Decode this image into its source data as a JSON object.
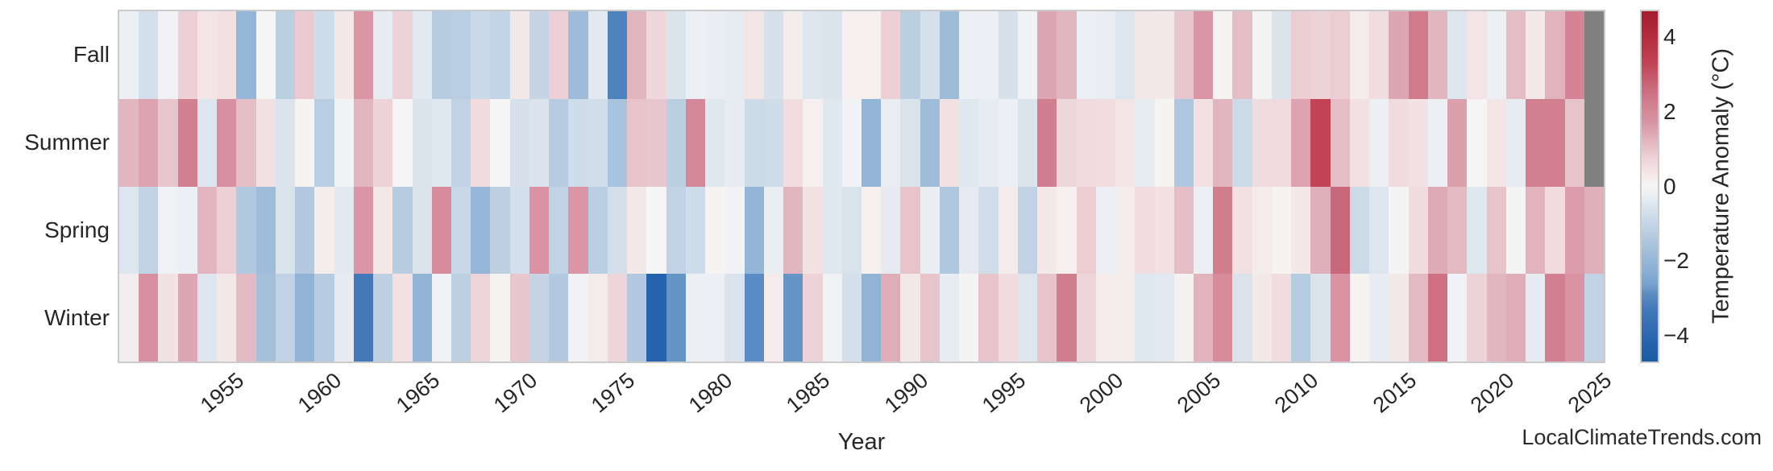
{
  "watermark": "LocalClimateTrends.com",
  "chart_data": {
    "type": "heatmap",
    "title": "",
    "xlabel": "Year",
    "ylabel": "",
    "rows": [
      "Fall",
      "Summer",
      "Spring",
      "Winter"
    ],
    "years": [
      1950,
      1951,
      1952,
      1953,
      1954,
      1955,
      1956,
      1957,
      1958,
      1959,
      1960,
      1961,
      1962,
      1963,
      1964,
      1965,
      1966,
      1967,
      1968,
      1969,
      1970,
      1971,
      1972,
      1973,
      1974,
      1975,
      1976,
      1977,
      1978,
      1979,
      1980,
      1981,
      1982,
      1983,
      1984,
      1985,
      1986,
      1987,
      1988,
      1989,
      1990,
      1991,
      1992,
      1993,
      1994,
      1995,
      1996,
      1997,
      1998,
      1999,
      2000,
      2001,
      2002,
      2003,
      2004,
      2005,
      2006,
      2007,
      2008,
      2009,
      2010,
      2011,
      2012,
      2013,
      2014,
      2015,
      2016,
      2017,
      2018,
      2019,
      2020,
      2021,
      2022,
      2023,
      2024,
      2025
    ],
    "x_tick_years": [
      1955,
      1960,
      1965,
      1970,
      1975,
      1980,
      1985,
      1990,
      1995,
      2000,
      2005,
      2010,
      2015,
      2020,
      2025
    ],
    "series": [
      {
        "name": "Fall",
        "values": [
          -0.2,
          -0.7,
          -0.1,
          0.8,
          0.4,
          0.5,
          -2.0,
          0.0,
          -1.2,
          0.9,
          -0.8,
          0.35,
          1.7,
          -0.3,
          0.75,
          -0.4,
          -1.3,
          -1.25,
          -0.9,
          -1.05,
          0.3,
          -1.0,
          0.8,
          -1.85,
          -0.4,
          -3.1,
          1.2,
          0.65,
          -0.55,
          -0.2,
          -0.25,
          -0.3,
          0.4,
          -0.65,
          0.2,
          -0.5,
          -0.55,
          0.15,
          0.15,
          0.8,
          -1.2,
          -0.65,
          -1.85,
          -0.2,
          -0.2,
          -0.65,
          -0.1,
          1.45,
          1.2,
          -0.2,
          -0.25,
          -0.5,
          0.35,
          0.3,
          0.95,
          1.7,
          0.05,
          1.1,
          -0.05,
          -0.55,
          0.85,
          0.75,
          0.85,
          0.25,
          0.55,
          1.45,
          2.3,
          1.2,
          -0.5,
          0.4,
          -0.2,
          1.1,
          0.3,
          1.25,
          2.1,
          null
        ]
      },
      {
        "name": "Summer",
        "values": [
          1.2,
          1.5,
          0.95,
          2.2,
          -0.5,
          1.8,
          1.1,
          0.5,
          -0.55,
          0.05,
          -1.25,
          -0.1,
          1.2,
          0.75,
          0.0,
          -0.55,
          -0.45,
          -1.1,
          0.6,
          0.0,
          -0.65,
          -0.55,
          -1.3,
          -0.8,
          -0.75,
          -1.6,
          1.0,
          0.95,
          -1.2,
          2.0,
          -0.45,
          -0.3,
          -0.85,
          -0.8,
          0.55,
          0.15,
          -0.45,
          -0.1,
          -2.05,
          -0.25,
          -0.6,
          -1.8,
          0.45,
          -0.45,
          -0.3,
          -0.2,
          -0.55,
          2.25,
          0.65,
          0.6,
          0.55,
          0.4,
          -0.3,
          0.05,
          -1.45,
          0.5,
          1.2,
          -0.85,
          0.6,
          0.6,
          1.5,
          3.3,
          1.1,
          0.5,
          -0.2,
          0.6,
          0.45,
          -0.2,
          1.55,
          0.0,
          0.4,
          -0.3,
          2.2,
          2.2,
          1.0,
          null
        ]
      },
      {
        "name": "Spring",
        "values": [
          -0.5,
          -1.1,
          -0.15,
          -0.2,
          1.2,
          0.8,
          -1.4,
          -1.8,
          -0.6,
          -1.4,
          0.2,
          -0.4,
          1.7,
          0.35,
          -1.3,
          -0.55,
          1.9,
          -0.95,
          -2.0,
          -1.15,
          -0.7,
          1.75,
          -1.1,
          1.7,
          -1.25,
          -0.7,
          0.3,
          0.0,
          -1.1,
          -0.8,
          0.05,
          -0.1,
          -2.05,
          -0.25,
          1.2,
          0.45,
          -0.45,
          -0.6,
          0.15,
          -0.35,
          1.0,
          -0.25,
          -1.45,
          -0.35,
          -0.75,
          0.25,
          -1.1,
          0.3,
          0.15,
          0.85,
          -0.2,
          0.2,
          0.55,
          0.5,
          1.1,
          -0.2,
          2.25,
          0.5,
          0.25,
          0.05,
          0.3,
          1.3,
          2.7,
          -0.85,
          -0.5,
          -0.05,
          0.6,
          1.4,
          1.15,
          -0.45,
          1.0,
          -0.05,
          1.25,
          0.6,
          1.6,
          1.3
        ]
      },
      {
        "name": "Winter",
        "values": [
          0.2,
          1.8,
          0.45,
          1.45,
          -0.5,
          0.35,
          1.15,
          -1.7,
          -1.1,
          -2.1,
          -1.3,
          -0.35,
          -3.3,
          -1.15,
          0.5,
          -2.1,
          -0.15,
          -1.15,
          0.7,
          0.05,
          0.95,
          -1.0,
          -1.4,
          -0.1,
          0.25,
          0.7,
          -1.4,
          -4.2,
          -2.8,
          -0.2,
          -0.2,
          -0.55,
          -2.9,
          0.25,
          -2.8,
          0.75,
          -0.1,
          -0.7,
          -2.1,
          1.35,
          0.35,
          1.0,
          -0.3,
          -0.05,
          1.0,
          0.6,
          -0.5,
          1.0,
          2.25,
          0.7,
          0.25,
          0.25,
          -0.45,
          -0.4,
          0.1,
          1.25,
          1.9,
          -0.6,
          0.3,
          0.55,
          -1.35,
          -0.55,
          1.75,
          0.05,
          -0.3,
          0.3,
          1.15,
          2.5,
          -0.1,
          0.75,
          1.2,
          1.35,
          -0.35,
          2.2,
          1.75,
          -1.1
        ]
      }
    ],
    "colorbar": {
      "label": "Temperature Anomaly (°C)",
      "ticks": [
        4,
        2,
        0,
        -2,
        -4
      ],
      "vmin": -4.7,
      "vmax": 4.7
    },
    "nan_color": "#808080",
    "colormap_stops": [
      [
        -4.7,
        "#1b5aa5"
      ],
      [
        -4.2,
        "#2563ae"
      ],
      [
        -3.3,
        "#4379b9"
      ],
      [
        -2.9,
        "#5b8cc3"
      ],
      [
        -2.6,
        "#7aa5cf"
      ],
      [
        -1.9,
        "#9abad8"
      ],
      [
        -1.1,
        "#c0d2e4"
      ],
      [
        -0.5,
        "#dde6ee"
      ],
      [
        -0.15,
        "#eff1f5"
      ],
      [
        0,
        "#f6f5f5"
      ],
      [
        0.25,
        "#f4ebeb"
      ],
      [
        0.5,
        "#f2e0e2"
      ],
      [
        0.8,
        "#ecd0d5"
      ],
      [
        1.3,
        "#e0b0ba"
      ],
      [
        1.8,
        "#d890a0"
      ],
      [
        2.2,
        "#d28090"
      ],
      [
        2.7,
        "#c9677a"
      ],
      [
        3.3,
        "#c14355"
      ],
      [
        4.0,
        "#b22c3e"
      ],
      [
        4.7,
        "#a61c2e"
      ]
    ],
    "grid": false,
    "legend_position": "right-colorbar"
  }
}
